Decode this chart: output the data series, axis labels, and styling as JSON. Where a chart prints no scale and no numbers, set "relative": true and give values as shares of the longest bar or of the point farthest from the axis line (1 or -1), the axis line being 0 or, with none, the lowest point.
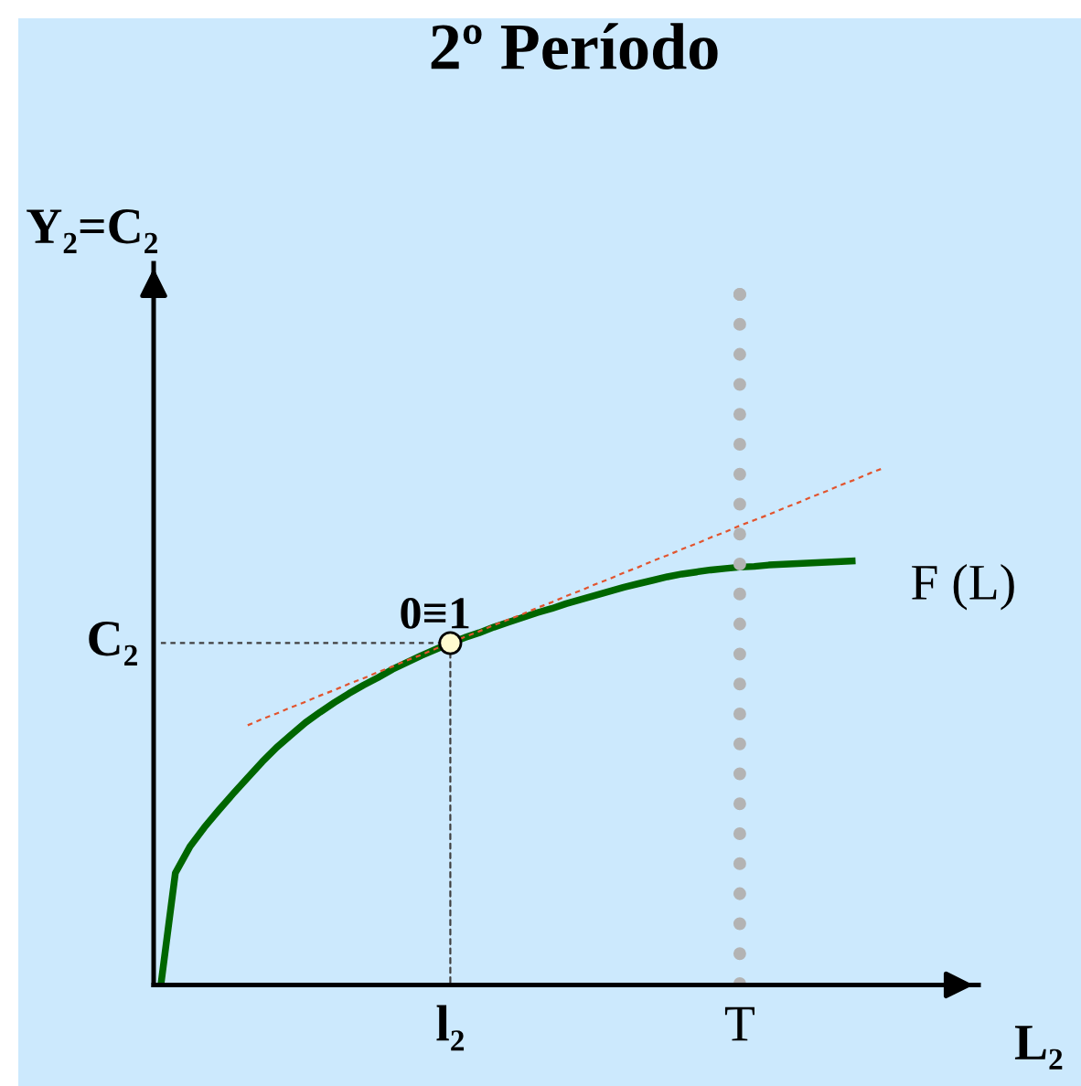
{
  "chart_data": {
    "type": "line",
    "title": "2º Período",
    "xlabel": "L₂",
    "ylabel": "Y₂=C₂",
    "relative": true,
    "categories": [
      null,
      null,
      null,
      null,
      null,
      null,
      null,
      null,
      null,
      null,
      null,
      null,
      null,
      null,
      null,
      null,
      null,
      null,
      null,
      null,
      "l₂",
      null,
      null,
      null,
      null,
      null,
      null,
      null,
      null,
      null,
      null,
      null,
      null,
      null,
      null,
      null,
      null,
      null,
      null,
      null,
      "T",
      null,
      null,
      null,
      null,
      null,
      null,
      null,
      null,
      null,
      null,
      null,
      null,
      null,
      null,
      null,
      null
    ],
    "series": [
      {
        "name": "C₂",
        "type": "line",
        "color": "#404040",
        "line_style": "dashed",
        "values": [
          0.495,
          0.495,
          0.495,
          0.495,
          0.495,
          0.495,
          0.495,
          0.495,
          0.495,
          0.495,
          0.495,
          0.495,
          0.495,
          0.495,
          0.495,
          0.495,
          0.495,
          0.495,
          0.495,
          0.495,
          0.495,
          null,
          null,
          null,
          null,
          null,
          null,
          null,
          null,
          null,
          null,
          null,
          null,
          null,
          null,
          null,
          null,
          null,
          null,
          null,
          null,
          null,
          null,
          null,
          null,
          null,
          null,
          null,
          null,
          null,
          null,
          null,
          null,
          null,
          null,
          null,
          null
        ]
      },
      {
        "name": "F (L)",
        "type": "line",
        "color": "#006600",
        "line_style": "solid",
        "values": [
          0,
          0.162,
          0.2,
          0.228,
          0.253,
          0.277,
          0.3,
          0.323,
          0.344,
          0.362,
          0.38,
          0.395,
          0.409,
          0.422,
          0.434,
          0.445,
          0.457,
          0.467,
          0.477,
          0.486,
          0.495,
          0.503,
          0.51,
          0.518,
          0.525,
          0.532,
          0.539,
          0.545,
          0.552,
          0.558,
          0.564,
          0.57,
          0.576,
          0.581,
          0.586,
          0.591,
          0.595,
          0.598,
          0.601,
          0.603,
          0.605,
          0.606,
          0.608,
          0.609,
          0.61,
          0.611,
          0.612,
          0.613,
          0.614,
          null,
          null,
          null,
          null,
          null,
          null,
          null,
          null
        ]
      },
      {
        "type": "line",
        "color": "#e2542e",
        "line_style": "dashed",
        "values": [
          null,
          null,
          null,
          null,
          null,
          null,
          0.376,
          0.385,
          0.393,
          0.402,
          0.41,
          0.419,
          0.427,
          0.436,
          0.444,
          0.453,
          0.461,
          0.47,
          0.478,
          0.487,
          0.495,
          0.504,
          0.512,
          0.521,
          0.529,
          0.537,
          0.546,
          0.554,
          0.563,
          0.571,
          0.58,
          0.588,
          0.597,
          0.605,
          0.614,
          0.622,
          0.631,
          0.639,
          0.648,
          0.656,
          0.665,
          0.673,
          0.681,
          0.69,
          0.698,
          0.707,
          0.715,
          0.724,
          0.732,
          0.741,
          0.749,
          null,
          null,
          null,
          null,
          null,
          null
        ]
      },
      {
        "type": "lollipop",
        "color": "#b3b3b3",
        "marker": "circle",
        "line_style": "dotted",
        "values": [
          null,
          null,
          null,
          null,
          null,
          null,
          null,
          null,
          null,
          null,
          null,
          null,
          null,
          null,
          null,
          null,
          null,
          null,
          null,
          null,
          null,
          null,
          null,
          null,
          null,
          null,
          null,
          null,
          null,
          null,
          null,
          null,
          null,
          null,
          null,
          null,
          null,
          null,
          null,
          null,
          1.0,
          null,
          null,
          null,
          null,
          null,
          null,
          null,
          null,
          null,
          null,
          null,
          null,
          null,
          null,
          null,
          null
        ]
      },
      {
        "name": "0≡1",
        "type": "lollipop",
        "color": "#fffbd0",
        "marker": "circle",
        "line_style": "dashed",
        "values": [
          null,
          null,
          null,
          null,
          null,
          null,
          null,
          null,
          null,
          null,
          null,
          null,
          null,
          null,
          null,
          null,
          null,
          null,
          null,
          null,
          0.495,
          null,
          null,
          null,
          null,
          null,
          null,
          null,
          null,
          null,
          null,
          null,
          null,
          null,
          null,
          null,
          null,
          null,
          null,
          null,
          null,
          null,
          null,
          null,
          null,
          null,
          null,
          null,
          null,
          null,
          null,
          null,
          null,
          null,
          null,
          null,
          null
        ]
      }
    ]
  }
}
